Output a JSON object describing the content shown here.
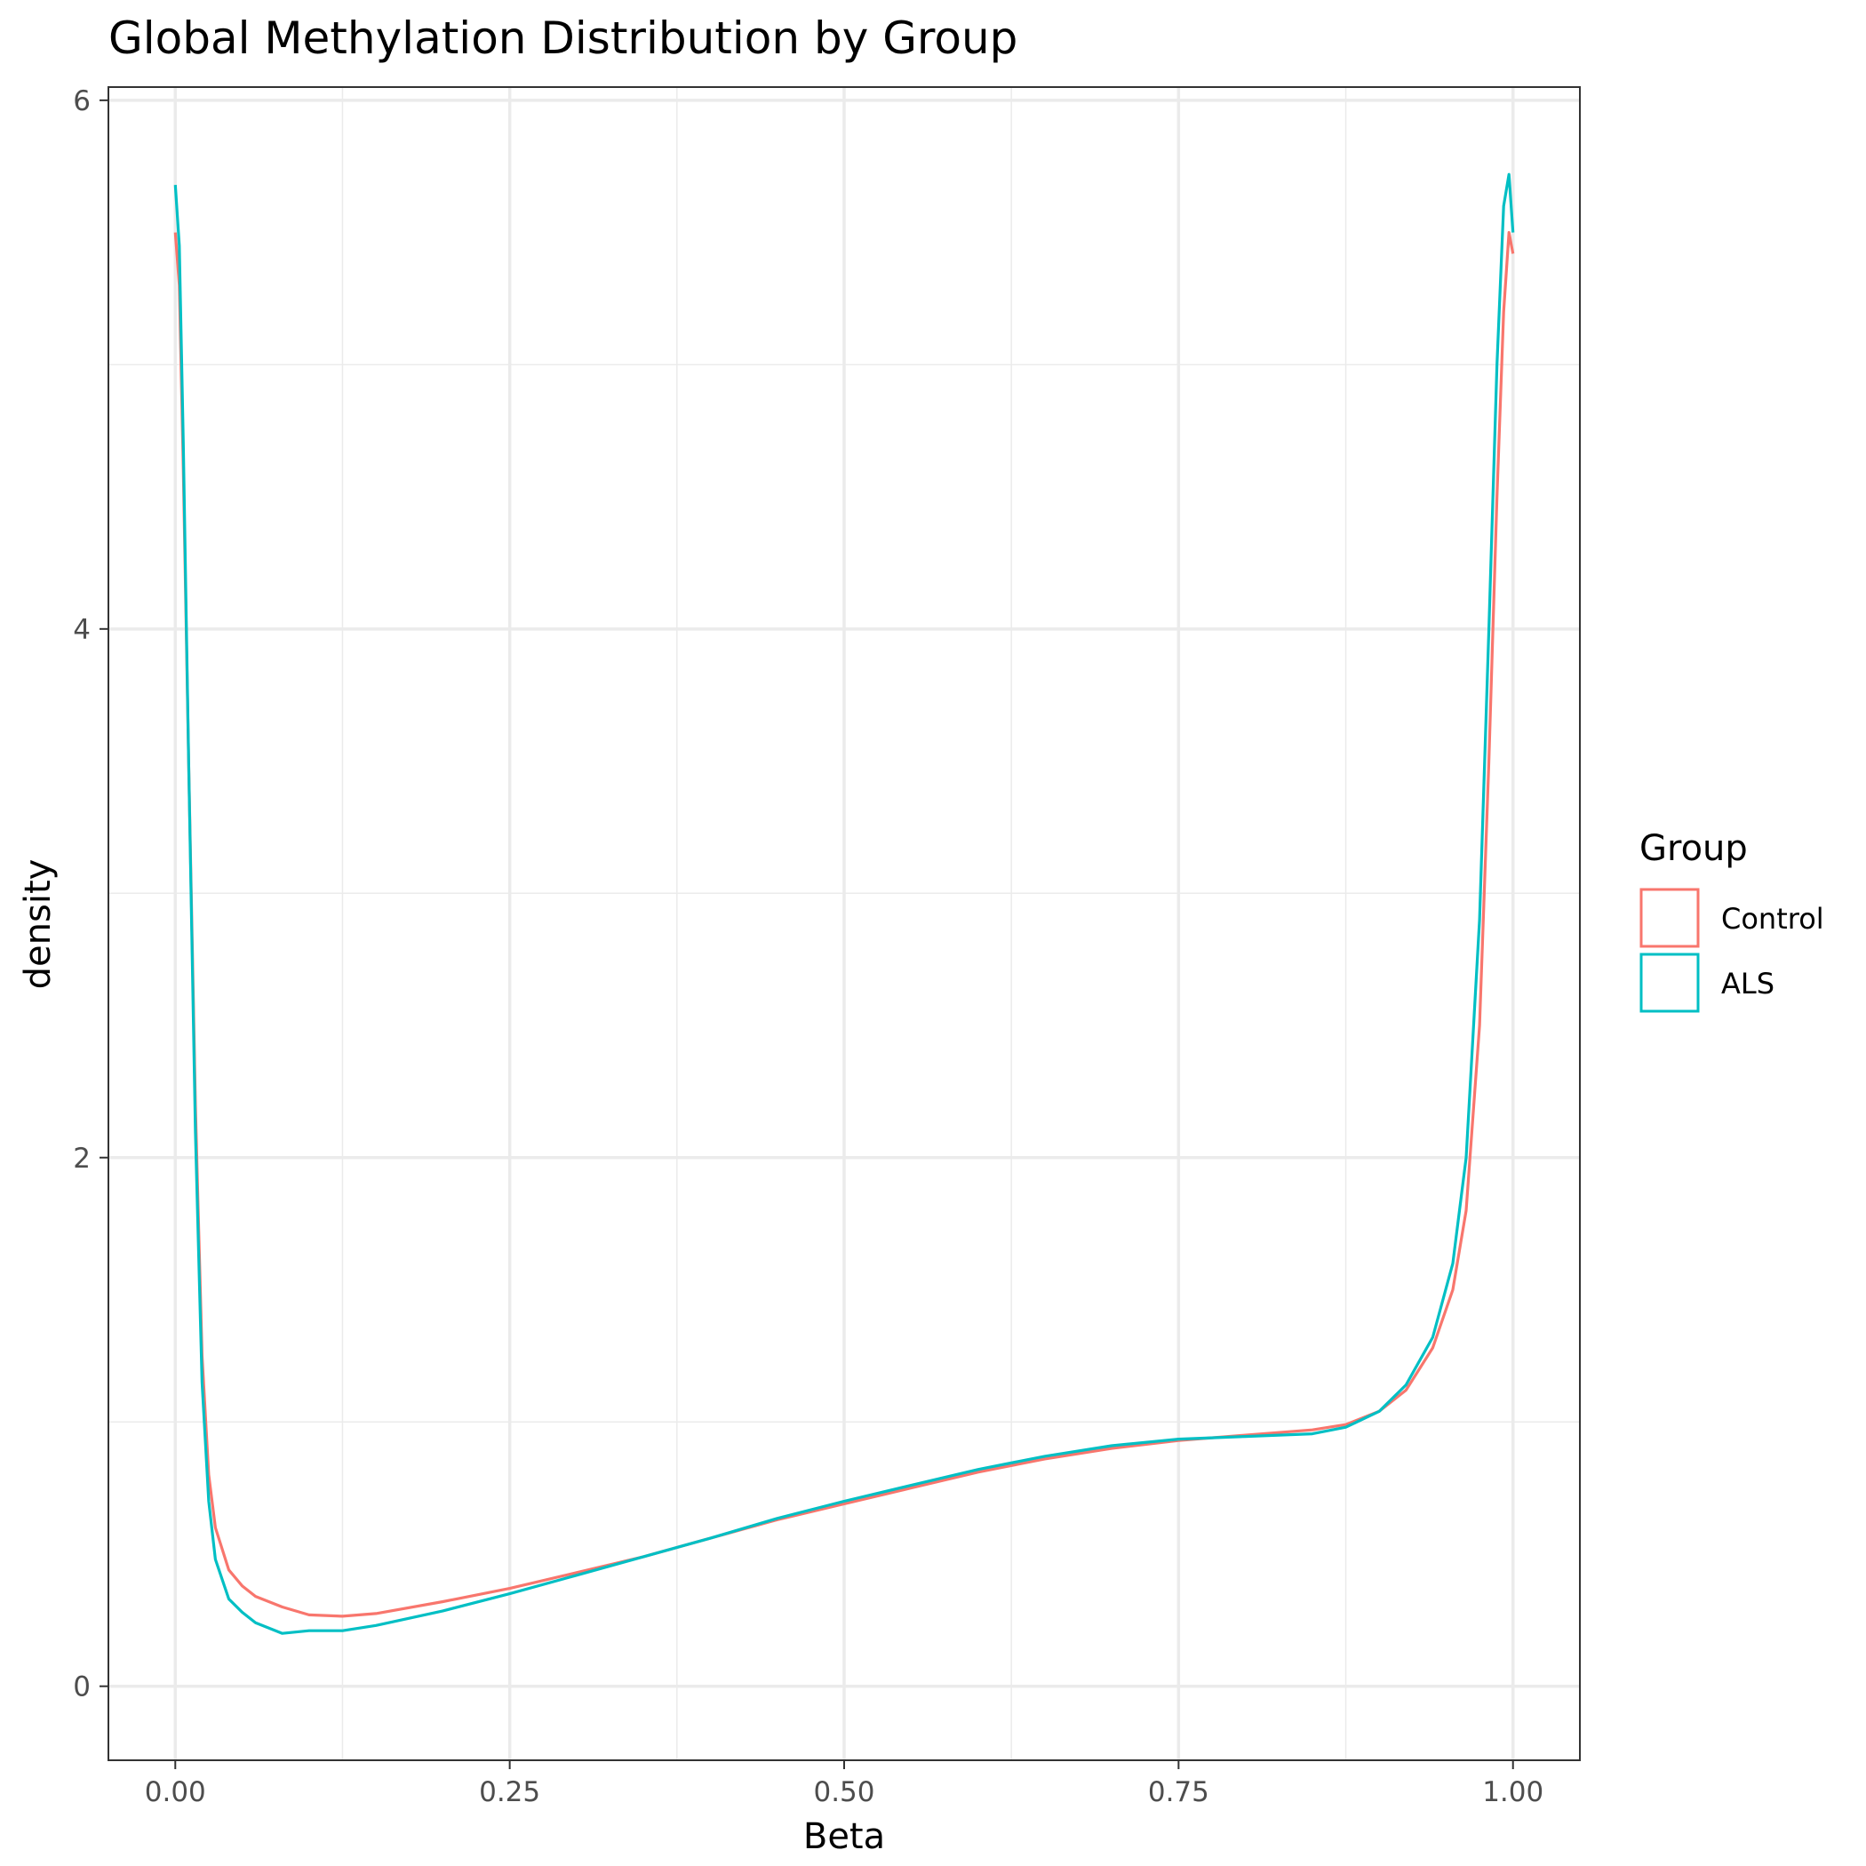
{
  "chart_data": {
    "type": "line",
    "title": "Global Methylation Distribution by Group",
    "xlabel": "Beta",
    "ylabel": "density",
    "xlim": [
      -0.05,
      1.05
    ],
    "ylim": [
      -0.28,
      6.05
    ],
    "x_ticks": [
      0,
      0.25,
      0.5,
      0.75,
      1.0
    ],
    "x_tick_labels": [
      "0.00",
      "0.25",
      "0.50",
      "0.75",
      "1.00"
    ],
    "y_ticks": [
      0,
      2,
      4,
      6
    ],
    "y_tick_labels": [
      "0",
      "2",
      "4",
      "6"
    ],
    "grid": true,
    "legend": {
      "title": "Group",
      "position": "right",
      "entries": [
        {
          "label": "Control",
          "color": "#F8766D"
        },
        {
          "label": "ALS",
          "color": "#00BFC4"
        }
      ]
    },
    "series": [
      {
        "name": "Control",
        "color": "#F8766D",
        "points": [
          [
            0.0,
            5.5
          ],
          [
            0.003,
            5.3
          ],
          [
            0.006,
            4.6
          ],
          [
            0.01,
            3.5
          ],
          [
            0.015,
            2.2
          ],
          [
            0.02,
            1.25
          ],
          [
            0.025,
            0.8
          ],
          [
            0.03,
            0.6
          ],
          [
            0.04,
            0.44
          ],
          [
            0.05,
            0.38
          ],
          [
            0.06,
            0.34
          ],
          [
            0.08,
            0.3
          ],
          [
            0.1,
            0.27
          ],
          [
            0.125,
            0.265
          ],
          [
            0.15,
            0.275
          ],
          [
            0.2,
            0.32
          ],
          [
            0.25,
            0.37
          ],
          [
            0.3,
            0.43
          ],
          [
            0.35,
            0.49
          ],
          [
            0.4,
            0.56
          ],
          [
            0.45,
            0.63
          ],
          [
            0.5,
            0.69
          ],
          [
            0.55,
            0.75
          ],
          [
            0.6,
            0.81
          ],
          [
            0.65,
            0.86
          ],
          [
            0.7,
            0.9
          ],
          [
            0.75,
            0.93
          ],
          [
            0.8,
            0.95
          ],
          [
            0.85,
            0.97
          ],
          [
            0.875,
            0.99
          ],
          [
            0.9,
            1.04
          ],
          [
            0.92,
            1.12
          ],
          [
            0.94,
            1.28
          ],
          [
            0.955,
            1.5
          ],
          [
            0.965,
            1.8
          ],
          [
            0.975,
            2.5
          ],
          [
            0.982,
            3.5
          ],
          [
            0.988,
            4.5
          ],
          [
            0.993,
            5.2
          ],
          [
            0.997,
            5.5
          ],
          [
            1.0,
            5.42
          ]
        ]
      },
      {
        "name": "ALS",
        "color": "#00BFC4",
        "points": [
          [
            0.0,
            5.68
          ],
          [
            0.003,
            5.45
          ],
          [
            0.006,
            4.7
          ],
          [
            0.01,
            3.5
          ],
          [
            0.015,
            2.1
          ],
          [
            0.02,
            1.15
          ],
          [
            0.025,
            0.7
          ],
          [
            0.03,
            0.48
          ],
          [
            0.04,
            0.33
          ],
          [
            0.05,
            0.28
          ],
          [
            0.06,
            0.24
          ],
          [
            0.08,
            0.2
          ],
          [
            0.1,
            0.21
          ],
          [
            0.125,
            0.21
          ],
          [
            0.15,
            0.23
          ],
          [
            0.2,
            0.285
          ],
          [
            0.25,
            0.35
          ],
          [
            0.3,
            0.42
          ],
          [
            0.35,
            0.49
          ],
          [
            0.4,
            0.56
          ],
          [
            0.45,
            0.635
          ],
          [
            0.5,
            0.7
          ],
          [
            0.55,
            0.76
          ],
          [
            0.6,
            0.82
          ],
          [
            0.65,
            0.87
          ],
          [
            0.7,
            0.91
          ],
          [
            0.75,
            0.935
          ],
          [
            0.8,
            0.945
          ],
          [
            0.85,
            0.955
          ],
          [
            0.875,
            0.98
          ],
          [
            0.9,
            1.04
          ],
          [
            0.92,
            1.14
          ],
          [
            0.94,
            1.32
          ],
          [
            0.955,
            1.6
          ],
          [
            0.965,
            2.0
          ],
          [
            0.975,
            2.9
          ],
          [
            0.982,
            4.0
          ],
          [
            0.988,
            5.0
          ],
          [
            0.993,
            5.6
          ],
          [
            0.997,
            5.72
          ],
          [
            1.0,
            5.5
          ]
        ]
      }
    ]
  }
}
